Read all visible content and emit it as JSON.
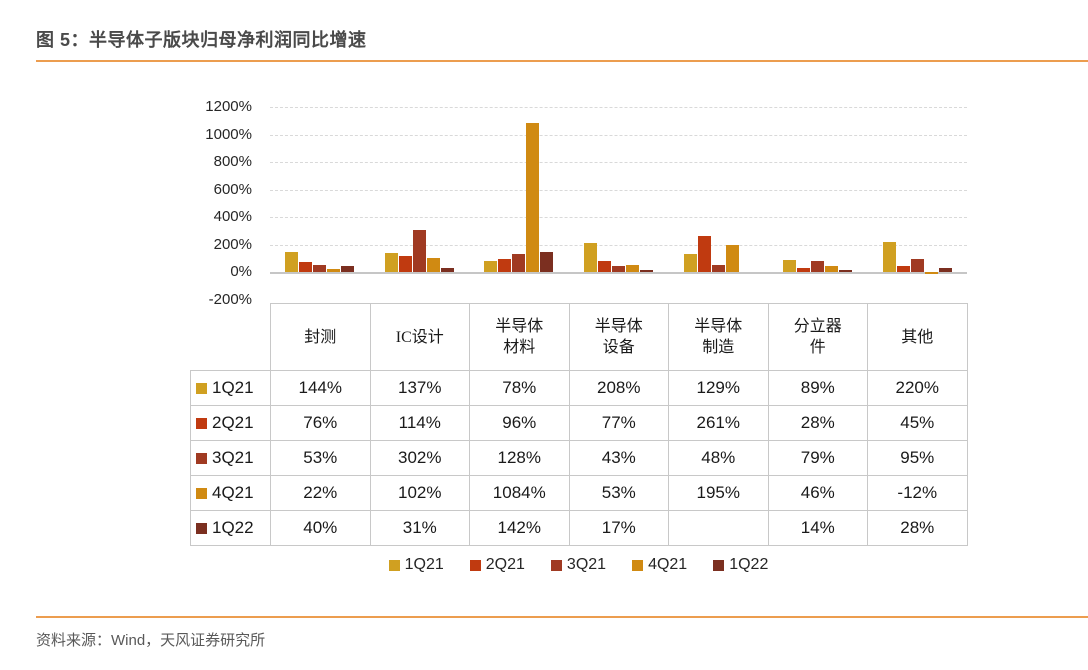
{
  "figure": {
    "title": "图 5：半导体子版块归母净利润同比增速"
  },
  "source": {
    "text": "资料来源：Wind，天风证券研究所"
  },
  "colors": {
    "accent_rule": "#ec9d4f",
    "title_text": "#4a4a4a",
    "source_text": "#595959",
    "grid": "#d9d9d9",
    "zero_axis": "#c6c6c6",
    "table_border": "#c8c8c8"
  },
  "chart_data": {
    "type": "bar",
    "title": "半导体子版块归母净利润同比增速",
    "unit": "%",
    "categories": [
      "封测",
      "IC设计",
      "半导体材料",
      "半导体设备",
      "半导体制造",
      "分立器件",
      "其他"
    ],
    "category_header_labels": [
      "封测",
      "IC设计",
      "半导体\n材料",
      "半导体\n设备",
      "半导体\n制造",
      "分立器\n件",
      "其他"
    ],
    "series": [
      {
        "name": "1Q21",
        "color": "#d0a021",
        "values": [
          144,
          137,
          78,
          208,
          129,
          89,
          220
        ]
      },
      {
        "name": "2Q21",
        "color": "#c03a10",
        "values": [
          76,
          114,
          96,
          77,
          261,
          28,
          45
        ]
      },
      {
        "name": "3Q21",
        "color": "#a03a22",
        "values": [
          53,
          302,
          128,
          43,
          48,
          79,
          95
        ]
      },
      {
        "name": "4Q21",
        "color": "#d08a12",
        "values": [
          22,
          102,
          1084,
          53,
          195,
          46,
          -12
        ]
      },
      {
        "name": "1Q22",
        "color": "#7b2f20",
        "values": [
          40,
          31,
          142,
          17,
          null,
          14,
          28
        ]
      }
    ],
    "ylim": [
      -200,
      1200
    ],
    "ytick_step": 200,
    "yticks": [
      "1200%",
      "1000%",
      "800%",
      "600%",
      "400%",
      "200%",
      "0%",
      "-200%"
    ],
    "grid": true,
    "legend_position": "bottom",
    "data_table_shown": true
  }
}
